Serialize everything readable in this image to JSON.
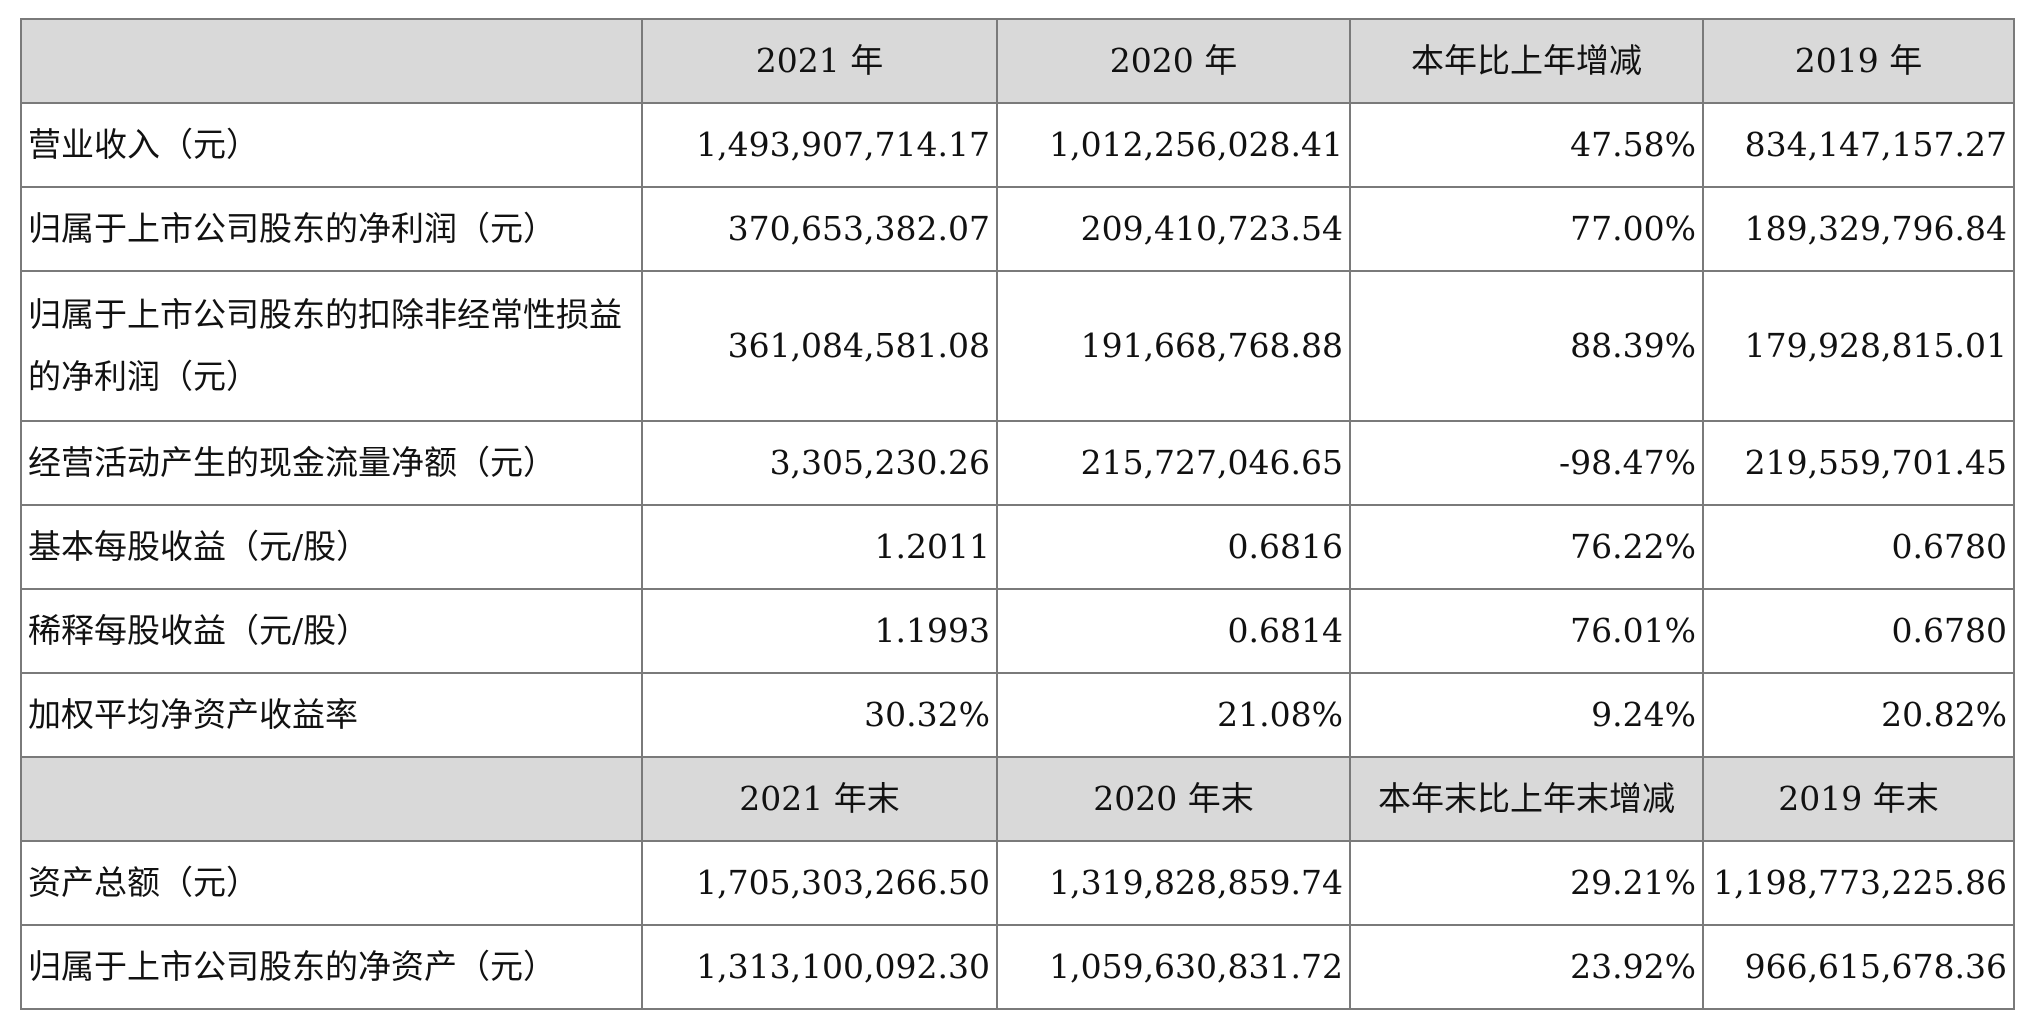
{
  "header_annual": {
    "blank": "",
    "cols": [
      "2021 年",
      "2020 年",
      "本年比上年增减",
      "2019 年"
    ]
  },
  "annual_rows": [
    {
      "label": "营业收入（元）",
      "values": [
        "1,493,907,714.17",
        "1,012,256,028.41",
        "47.58%",
        "834,147,157.27"
      ]
    },
    {
      "label": "归属于上市公司股东的净利润（元）",
      "values": [
        "370,653,382.07",
        "209,410,723.54",
        "77.00%",
        "189,329,796.84"
      ]
    },
    {
      "label": "归属于上市公司股东的扣除非经常性损益的净利润（元）",
      "values": [
        "361,084,581.08",
        "191,668,768.88",
        "88.39%",
        "179,928,815.01"
      ]
    },
    {
      "label": "经营活动产生的现金流量净额（元）",
      "values": [
        "3,305,230.26",
        "215,727,046.65",
        "-98.47%",
        "219,559,701.45"
      ]
    },
    {
      "label": "基本每股收益（元/股）",
      "values": [
        "1.2011",
        "0.6816",
        "76.22%",
        "0.6780"
      ]
    },
    {
      "label": "稀释每股收益（元/股）",
      "values": [
        "1.1993",
        "0.6814",
        "76.01%",
        "0.6780"
      ]
    },
    {
      "label": "加权平均净资产收益率",
      "values": [
        "30.32%",
        "21.08%",
        "9.24%",
        "20.82%"
      ]
    }
  ],
  "header_yearend": {
    "blank": "",
    "cols": [
      "2021 年末",
      "2020 年末",
      "本年末比上年末增减",
      "2019 年末"
    ]
  },
  "yearend_rows": [
    {
      "label": "资产总额（元）",
      "values": [
        "1,705,303,266.50",
        "1,319,828,859.74",
        "29.21%",
        "1,198,773,225.86"
      ]
    },
    {
      "label": "归属于上市公司股东的净资产（元）",
      "values": [
        "1,313,100,092.30",
        "1,059,630,831.72",
        "23.92%",
        "966,615,678.36"
      ]
    }
  ]
}
